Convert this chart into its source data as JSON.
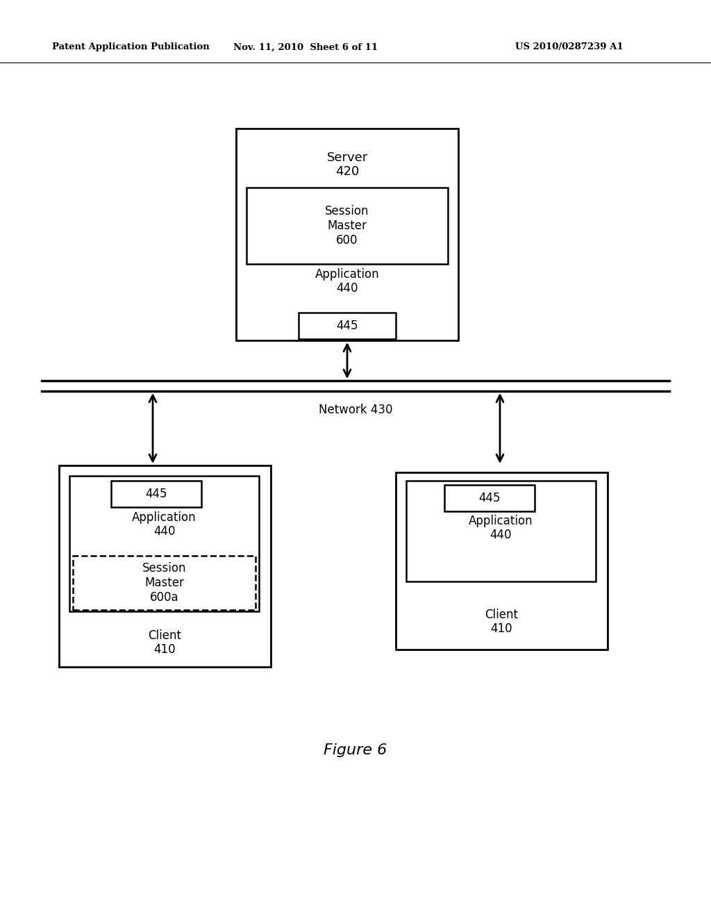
{
  "bg_color": "#ffffff",
  "header_left": "Patent Application Publication",
  "header_mid": "Nov. 11, 2010  Sheet 6 of 11",
  "header_right": "US 2010/0287239 A1",
  "figure_label": "Figure 6",
  "network_label": "Network 430"
}
